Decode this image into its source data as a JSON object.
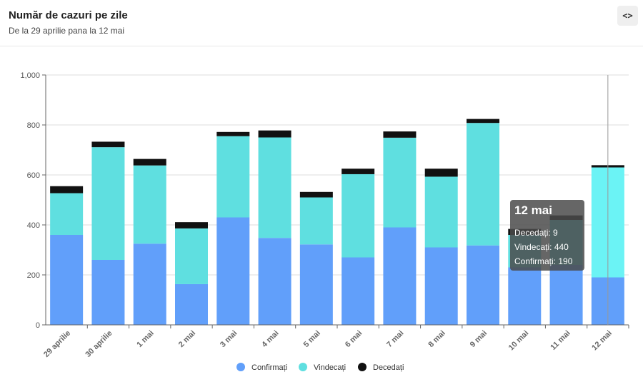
{
  "header": {
    "title": "Număr de cazuri pe zile",
    "subtitle": "De la 29 aprilie pana la 12 mai",
    "code_button": "<>",
    "code_icon": "code-icon"
  },
  "colors": {
    "confirmed": "#619ffa",
    "recovered": "#5fdfe0",
    "recovered_highlight": "#6bf3f5",
    "deceased": "#111111",
    "tooltip_bg": "rgba(75,75,75,0.85)"
  },
  "chart_data": {
    "type": "bar",
    "stacked": true,
    "title": "Număr de cazuri pe zile",
    "subtitle": "De la 29 aprilie pana la 12 mai",
    "categories": [
      "29 aprilie",
      "30 aprilie",
      "1 mai",
      "2 mai",
      "3 mai",
      "4 mai",
      "5 mai",
      "6 mai",
      "7 mai",
      "8 mai",
      "9 mai",
      "10 mai",
      "11 mai",
      "12 mai"
    ],
    "series": [
      {
        "name": "Confirmați",
        "values": [
          360,
          260,
          325,
          163,
          430,
          348,
          322,
          270,
          390,
          310,
          318,
          230,
          240,
          190
        ]
      },
      {
        "name": "Vindecați",
        "values": [
          167,
          451,
          313,
          223,
          325,
          402,
          188,
          333,
          359,
          283,
          490,
          130,
          180,
          440
        ]
      },
      {
        "name": "Decedați",
        "values": [
          28,
          22,
          26,
          25,
          17,
          28,
          22,
          22,
          25,
          32,
          16,
          24,
          18,
          9
        ]
      }
    ],
    "yticks": [
      "0",
      "200",
      "400",
      "600",
      "800",
      "1,000"
    ],
    "ylim": [
      0,
      1000
    ],
    "xlabel": "",
    "ylabel": "",
    "grid": true,
    "legend": "bottom-center",
    "highlighted_category_index": 13,
    "tooltip": {
      "title": "12 mai",
      "lines": [
        "Decedați: 9",
        "Vindecați: 440",
        "Confirmați: 190"
      ]
    }
  }
}
